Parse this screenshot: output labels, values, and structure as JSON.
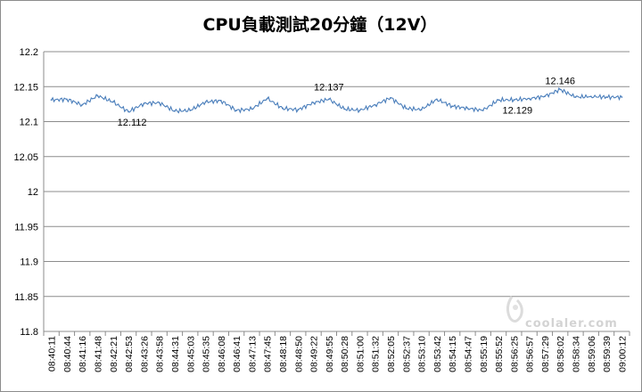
{
  "chart_data": {
    "type": "line",
    "title": "CPU負載測試20分鐘（12V）",
    "xlabel": "",
    "ylabel": "",
    "ylim": [
      11.8,
      12.2
    ],
    "yticks": [
      12.2,
      12.15,
      12.1,
      12.05,
      12,
      11.95,
      11.9,
      11.85,
      11.8
    ],
    "grid": "horizontal",
    "legend": "none",
    "line_color": "#4a7ebb",
    "categories": [
      "08:40:11",
      "08:40:44",
      "08:41:16",
      "08:41:48",
      "08:42:21",
      "08:42:53",
      "08:43:26",
      "08:43:58",
      "08:44:31",
      "08:45:03",
      "08:45:35",
      "08:46:08",
      "08:46:41",
      "08:47:13",
      "08:47:45",
      "08:48:18",
      "08:48:50",
      "08:49:22",
      "08:49:55",
      "08:50:28",
      "08:51:00",
      "08:51:32",
      "08:52:05",
      "08:52:37",
      "08:53:10",
      "08:53:42",
      "08:54:15",
      "08:54:47",
      "08:55:19",
      "08:55:52",
      "08:56:25",
      "08:56:57",
      "08:57:29",
      "08:58:02",
      "08:58:34",
      "08:59:06",
      "08:59:39",
      "09:00:12"
    ],
    "series": [
      {
        "values": [
          12.131,
          12.132,
          12.124,
          12.137,
          12.128,
          12.114,
          12.126,
          12.127,
          12.115,
          12.116,
          12.128,
          12.13,
          12.116,
          12.118,
          12.133,
          12.119,
          12.117,
          12.127,
          12.132,
          12.118,
          12.116,
          12.124,
          12.134,
          12.119,
          12.117,
          12.132,
          12.122,
          12.119,
          12.116,
          12.131,
          12.131,
          12.133,
          12.136,
          12.146,
          12.135,
          12.136,
          12.135,
          12.135
        ]
      }
    ],
    "annotations": [
      {
        "text": "12.112",
        "x": "08:42:53",
        "y": 12.112
      },
      {
        "text": "12.137",
        "x": "08:49:55",
        "y": 12.137
      },
      {
        "text": "12.129",
        "x": "08:56:25",
        "y": 12.129
      },
      {
        "text": "12.146",
        "x": "08:58:02",
        "y": 12.146
      }
    ],
    "watermark": "coolaler.com"
  }
}
